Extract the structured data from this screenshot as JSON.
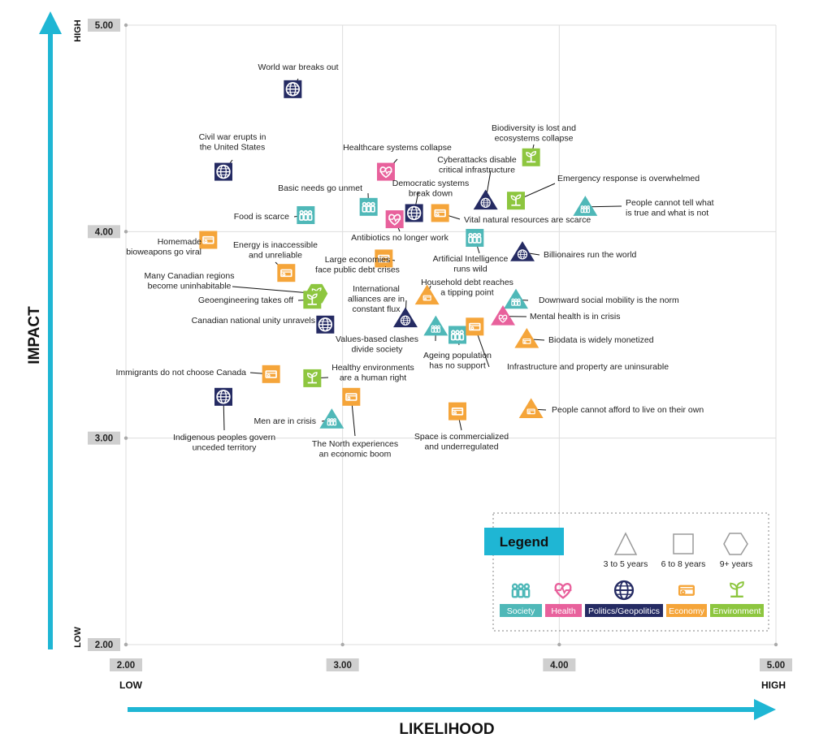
{
  "chart_data": {
    "type": "scatter",
    "xlabel": "LIKELIHOOD",
    "ylabel": "IMPACT",
    "x_low_label": "LOW",
    "x_high_label": "HIGH",
    "y_low_label": "LOW",
    "y_high_label": "HIGH",
    "xlim": [
      2.0,
      5.0
    ],
    "ylim": [
      2.0,
      5.0
    ],
    "x_ticks": [
      "2.00",
      "3.00",
      "4.00",
      "5.00"
    ],
    "y_ticks": [
      "2.00",
      "3.00",
      "4.00",
      "5.00"
    ],
    "grid": true,
    "legend": {
      "title": "Legend",
      "position": "bottom-right",
      "timeframes": [
        {
          "shape": "triangle",
          "label": "3 to 5 years"
        },
        {
          "shape": "square",
          "label": "6 to 8 years"
        },
        {
          "shape": "hexagon",
          "label": "9+ years"
        }
      ],
      "categories": [
        {
          "key": "society",
          "label": "Society",
          "color": "#4fb8b8",
          "icon": "society-icon"
        },
        {
          "key": "health",
          "label": "Health",
          "color": "#e8619c",
          "icon": "health-icon"
        },
        {
          "key": "politics",
          "label": "Politics/Geopolitics",
          "color": "#252b63",
          "icon": "globe-icon"
        },
        {
          "key": "economy",
          "label": "Economy",
          "color": "#f5a53a",
          "icon": "money-icon"
        },
        {
          "key": "environment",
          "label": "Environment",
          "color": "#8dc63f",
          "icon": "plant-icon"
        }
      ]
    },
    "points": [
      {
        "label": [
          "World war breaks out"
        ],
        "x": 2.77,
        "y": 4.69,
        "category": "politics",
        "shape": "square"
      },
      {
        "label": [
          "Civil war erupts in",
          "the United States"
        ],
        "x": 2.45,
        "y": 4.29,
        "category": "politics",
        "shape": "square"
      },
      {
        "label": [
          "Healthcare systems collapse"
        ],
        "x": 3.2,
        "y": 4.29,
        "category": "health",
        "shape": "square"
      },
      {
        "label": [
          "Biodiversity is lost and",
          "ecosystems collapse"
        ],
        "x": 3.87,
        "y": 4.36,
        "category": "environment",
        "shape": "square"
      },
      {
        "label": [
          "Cyberattacks disable",
          "critical infrastructure"
        ],
        "x": 3.66,
        "y": 4.15,
        "category": "politics",
        "shape": "triangle"
      },
      {
        "label": [
          "Emergency response is overwhelmed"
        ],
        "x": 3.8,
        "y": 4.15,
        "category": "environment",
        "shape": "square"
      },
      {
        "label": [
          "People cannot tell what",
          "is true and what is not"
        ],
        "x": 4.12,
        "y": 4.12,
        "category": "society",
        "shape": "triangle"
      },
      {
        "label": [
          "Basic needs go unmet"
        ],
        "x": 3.12,
        "y": 4.12,
        "category": "society",
        "shape": "square"
      },
      {
        "label": [
          "Democratic systems",
          "break down"
        ],
        "x": 3.33,
        "y": 4.09,
        "category": "politics",
        "shape": "square"
      },
      {
        "label": [
          "Vital natural resources are scarce"
        ],
        "x": 3.45,
        "y": 4.09,
        "category": "economy",
        "shape": "square"
      },
      {
        "label": [
          "Antibiotics no longer work"
        ],
        "x": 3.24,
        "y": 4.06,
        "category": "health",
        "shape": "square"
      },
      {
        "label": [
          "Food is scarce"
        ],
        "x": 2.83,
        "y": 4.08,
        "category": "society",
        "shape": "square"
      },
      {
        "label": [
          "Homemade",
          "bioweapons go viral"
        ],
        "x": 2.38,
        "y": 3.96,
        "category": "economy",
        "shape": "square"
      },
      {
        "label": [
          "Artificial Intelligence",
          "runs wild"
        ],
        "x": 3.61,
        "y": 3.97,
        "category": "society",
        "shape": "square"
      },
      {
        "label": [
          "Billionaires run the world"
        ],
        "x": 3.83,
        "y": 3.9,
        "category": "politics",
        "shape": "triangle"
      },
      {
        "label": [
          "Energy is inaccessible",
          "and unreliable"
        ],
        "x": 2.74,
        "y": 3.8,
        "category": "economy",
        "shape": "square"
      },
      {
        "label": [
          "Large economies",
          "face public debt crises"
        ],
        "x": 3.19,
        "y": 3.87,
        "category": "economy",
        "shape": "square"
      },
      {
        "label": [
          "Many Canadian regions",
          "become uninhabitable"
        ],
        "x": 2.88,
        "y": 3.7,
        "category": "environment",
        "shape": "hexagon"
      },
      {
        "label": [
          "Household debt reaches",
          "a tipping point"
        ],
        "x": 3.39,
        "y": 3.69,
        "category": "economy",
        "shape": "triangle"
      },
      {
        "label": [
          "Geoengineering takes off"
        ],
        "x": 2.86,
        "y": 3.67,
        "category": "environment",
        "shape": "square"
      },
      {
        "label": [
          "International",
          "alliances are in",
          "constant flux"
        ],
        "x": 3.29,
        "y": 3.58,
        "category": "politics",
        "shape": "triangle"
      },
      {
        "label": [
          "Downward social mobility is the norm"
        ],
        "x": 3.8,
        "y": 3.67,
        "category": "society",
        "shape": "triangle"
      },
      {
        "label": [
          "Mental health is in crisis"
        ],
        "x": 3.74,
        "y": 3.59,
        "category": "health",
        "shape": "triangle"
      },
      {
        "label": [
          "Canadian national unity unravels"
        ],
        "x": 2.92,
        "y": 3.55,
        "category": "politics",
        "shape": "square"
      },
      {
        "label": [
          "Values-based clashes",
          "divide society"
        ],
        "x": 3.43,
        "y": 3.54,
        "category": "society",
        "shape": "triangle"
      },
      {
        "label": [
          "Ageing population",
          "has no support"
        ],
        "x": 3.53,
        "y": 3.5,
        "category": "society",
        "shape": "square"
      },
      {
        "label": [
          "Infrastructure and property are uninsurable"
        ],
        "x": 3.61,
        "y": 3.54,
        "category": "economy",
        "shape": "square"
      },
      {
        "label": [
          "Biodata is widely monetized"
        ],
        "x": 3.85,
        "y": 3.48,
        "category": "economy",
        "shape": "triangle"
      },
      {
        "label": [
          "Immigrants do not choose Canada"
        ],
        "x": 2.67,
        "y": 3.31,
        "category": "economy",
        "shape": "square"
      },
      {
        "label": [
          "Healthy environments",
          "are a human right"
        ],
        "x": 2.86,
        "y": 3.29,
        "category": "environment",
        "shape": "square"
      },
      {
        "label": [
          "Indigenous peoples govern",
          "unceded territory"
        ],
        "x": 2.45,
        "y": 3.2,
        "category": "politics",
        "shape": "square"
      },
      {
        "label": [
          "The North experiences",
          "an economic boom"
        ],
        "x": 3.04,
        "y": 3.2,
        "category": "economy",
        "shape": "square"
      },
      {
        "label": [
          "People cannot afford to live on their own"
        ],
        "x": 3.87,
        "y": 3.14,
        "category": "economy",
        "shape": "triangle"
      },
      {
        "label": [
          "Men are in crisis"
        ],
        "x": 2.95,
        "y": 3.09,
        "category": "society",
        "shape": "triangle"
      },
      {
        "label": [
          "Space is commercialized",
          "and underregulated"
        ],
        "x": 3.53,
        "y": 3.13,
        "category": "economy",
        "shape": "square"
      }
    ]
  }
}
